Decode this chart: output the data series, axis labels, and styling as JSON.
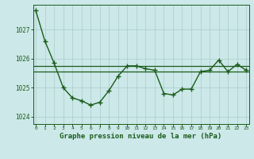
{
  "hours": [
    0,
    1,
    2,
    3,
    4,
    5,
    6,
    7,
    8,
    9,
    10,
    11,
    12,
    13,
    14,
    15,
    16,
    17,
    18,
    19,
    20,
    21,
    22,
    23
  ],
  "pressure": [
    1027.65,
    1026.6,
    1025.85,
    1025.0,
    1024.65,
    1024.55,
    1024.4,
    1024.5,
    1024.9,
    1025.4,
    1025.75,
    1025.75,
    1025.65,
    1025.6,
    1024.8,
    1024.75,
    1024.95,
    1024.95,
    1025.55,
    1025.6,
    1025.95,
    1025.55,
    1025.8,
    1025.6
  ],
  "mean_line1": 1025.75,
  "mean_line2": 1025.55,
  "ylim": [
    1023.75,
    1027.85
  ],
  "yticks": [
    1024,
    1025,
    1026,
    1027
  ],
  "xtick_labels": [
    "0",
    "1",
    "2",
    "3",
    "4",
    "5",
    "6",
    "7",
    "8",
    "9",
    "10",
    "11",
    "12",
    "13",
    "14",
    "15",
    "16",
    "17",
    "18",
    "19",
    "20",
    "21",
    "22",
    "23"
  ],
  "xlabel": "Graphe pression niveau de la mer (hPa)",
  "line_color": "#1a5c1a",
  "bg_color": "#cce8e8",
  "grid_color": "#aacccc",
  "axis_color": "#1a5c1a",
  "tick_color": "#1a5c1a",
  "label_color": "#1a5c1a",
  "marker": "+",
  "marker_size": 4,
  "linewidth": 1.0
}
